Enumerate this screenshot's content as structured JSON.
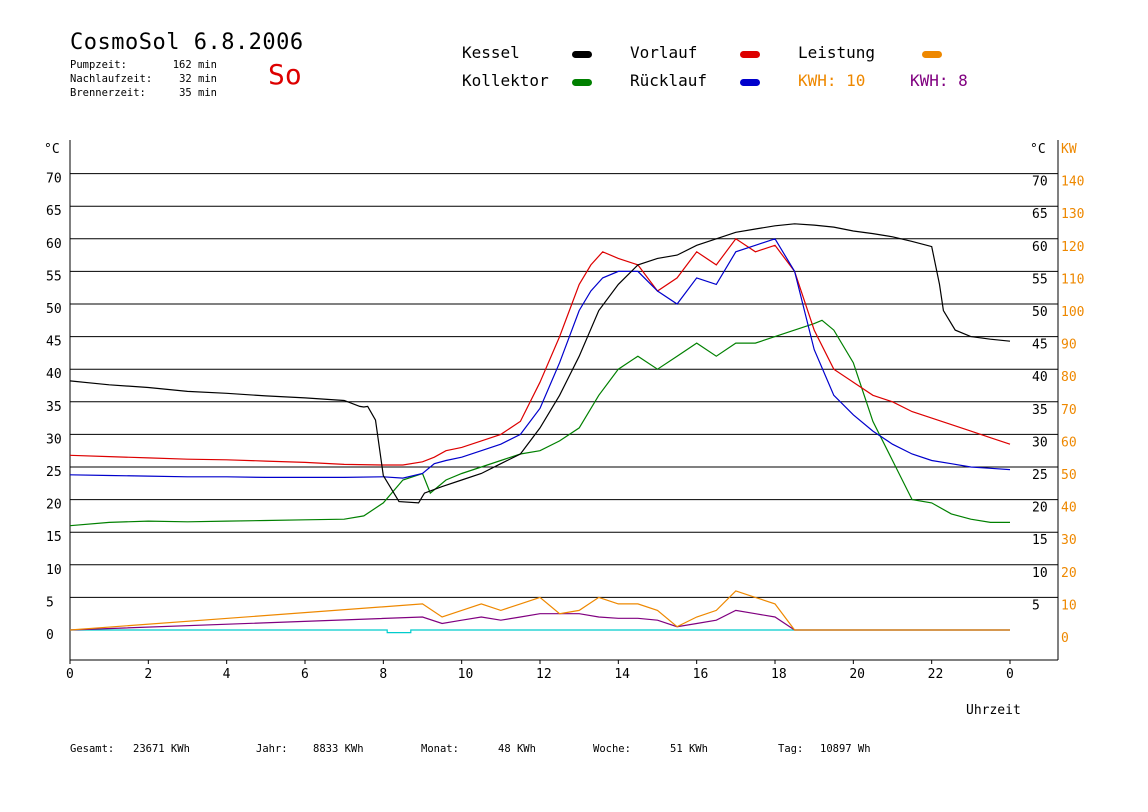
{
  "header": {
    "title": "CosmoSol 6.8.2006",
    "day": "So",
    "stats": [
      {
        "label": "Pumpzeit:",
        "value": "162 min"
      },
      {
        "label": "Nachlaufzeit:",
        "value": "32 min"
      },
      {
        "label": "Brennerzeit:",
        "value": "35 min"
      }
    ]
  },
  "legend": {
    "kessel": {
      "label": "Kessel",
      "color": "#000000"
    },
    "vorlauf": {
      "label": "Vorlauf",
      "color": "#dd0000"
    },
    "leistung": {
      "label": "Leistung",
      "color": "#ee8800"
    },
    "kollektor": {
      "label": "Kollektor",
      "color": "#008000"
    },
    "ruecklauf": {
      "label": "Rücklauf",
      "color": "#0000cc"
    },
    "kwh1": {
      "label": "KWH: 10",
      "color": "#ee8800"
    },
    "kwh2": {
      "label": "KWH: 8",
      "color": "#800080"
    }
  },
  "footer": {
    "gesamt": {
      "label": "Gesamt:",
      "value": "23671 KWh"
    },
    "jahr": {
      "label": "Jahr:",
      "value": "8833 KWh"
    },
    "monat": {
      "label": "Monat:",
      "value": "48 KWh"
    },
    "woche": {
      "label": "Woche:",
      "value": "51 KWh"
    },
    "tag": {
      "label": "Tag:",
      "value": "10897 Wh"
    }
  },
  "chart_data": {
    "type": "line",
    "xlabel": "Uhrzeit",
    "ylabel_left": "°C",
    "ylabel_right_primary": "°C",
    "ylabel_right_secondary": "KW",
    "xlim": [
      0,
      24
    ],
    "ylim": [
      0,
      75
    ],
    "x_ticks": [
      "0",
      "2",
      "4",
      "6",
      "8",
      "10",
      "12",
      "14",
      "16",
      "18",
      "20",
      "22",
      "0"
    ],
    "y_left_ticks": [
      "0",
      "5",
      "10",
      "15",
      "20",
      "25",
      "30",
      "35",
      "40",
      "45",
      "50",
      "55",
      "60",
      "65",
      "70"
    ],
    "y_right_ticks": [
      "5",
      "10",
      "15",
      "20",
      "25",
      "30",
      "35",
      "40",
      "45",
      "50",
      "55",
      "60",
      "65",
      "70"
    ],
    "kw_ticks": [
      "0",
      "10",
      "20",
      "30",
      "40",
      "50",
      "60",
      "70",
      "80",
      "90",
      "100",
      "110",
      "120",
      "130",
      "140"
    ],
    "grid": true,
    "series": [
      {
        "name": "Kessel",
        "color": "#000000",
        "x": [
          0,
          1,
          2,
          3,
          4,
          5,
          6,
          7,
          7.4,
          7.5,
          7.6,
          7.8,
          8.0,
          8.4,
          8.9,
          9.0,
          9.05,
          9.5,
          10,
          10.5,
          11,
          11.5,
          12,
          12.5,
          13,
          13.5,
          14,
          14.5,
          15,
          15.5,
          16,
          16.5,
          17,
          17.5,
          18,
          18.5,
          19,
          19.5,
          20,
          20.5,
          21,
          21.5,
          22,
          22.2,
          22.3,
          22.6,
          23,
          23.5,
          24
        ],
        "y": [
          38.2,
          37.6,
          37.2,
          36.6,
          36.3,
          35.9,
          35.6,
          35.2,
          34.3,
          34.2,
          34.3,
          32.2,
          23.7,
          19.7,
          19.5,
          20.5,
          21,
          22,
          23,
          24,
          25.5,
          27,
          31,
          36,
          42,
          49,
          53,
          56,
          57,
          57.5,
          59,
          60,
          61,
          61.5,
          62,
          62.3,
          62.1,
          61.8,
          61.2,
          60.8,
          60.3,
          59.6,
          58.8,
          53,
          49,
          46,
          45,
          44.6,
          44.3
        ]
      },
      {
        "name": "Vorlauf",
        "color": "#dd0000",
        "x": [
          0,
          1,
          2,
          3,
          4,
          5,
          6,
          7,
          8,
          8.5,
          9,
          9.3,
          9.6,
          10,
          10.5,
          11,
          11.5,
          12,
          12.5,
          13,
          13.3,
          13.6,
          14,
          14.5,
          15,
          15.5,
          16,
          16.5,
          17,
          17.5,
          18,
          18.5,
          19,
          19.5,
          20,
          20.5,
          21,
          21.5,
          22,
          22.5,
          23,
          23.5,
          24
        ],
        "y": [
          26.8,
          26.6,
          26.4,
          26.2,
          26.1,
          25.9,
          25.7,
          25.4,
          25.3,
          25.3,
          25.8,
          26.5,
          27.5,
          28,
          29,
          30,
          32,
          38,
          45,
          53,
          56,
          58,
          57,
          56,
          52,
          54,
          58,
          56,
          60,
          58,
          59,
          55,
          46,
          40,
          38,
          36,
          35,
          33.5,
          32.5,
          31.5,
          30.5,
          29.5,
          28.5
        ]
      },
      {
        "name": "Rücklauf",
        "color": "#0000cc",
        "x": [
          0,
          1,
          2,
          3,
          4,
          5,
          6,
          7,
          8,
          8.5,
          9,
          9.3,
          9.6,
          10,
          10.5,
          11,
          11.5,
          12,
          12.5,
          13,
          13.3,
          13.6,
          14,
          14.5,
          15,
          15.5,
          16,
          16.5,
          17,
          17.5,
          18,
          18.5,
          19,
          19.5,
          20,
          20.5,
          21,
          21.5,
          22,
          22.5,
          23,
          23.5,
          24
        ],
        "y": [
          23.8,
          23.7,
          23.6,
          23.5,
          23.5,
          23.4,
          23.4,
          23.4,
          23.5,
          23.3,
          24,
          25.5,
          26,
          26.5,
          27.5,
          28.5,
          30,
          34,
          41,
          49,
          52,
          54,
          55,
          55,
          52,
          50,
          54,
          53,
          58,
          59,
          60,
          55,
          43,
          36,
          33,
          30.5,
          28.5,
          27,
          26,
          25.5,
          25,
          24.8,
          24.6
        ]
      },
      {
        "name": "Kollektor",
        "color": "#008000",
        "x": [
          0,
          1,
          2,
          3,
          4,
          5,
          6,
          7,
          7.5,
          8,
          8.5,
          9,
          9.2,
          9.6,
          10,
          10.5,
          11,
          11.5,
          12,
          12.5,
          13,
          13.5,
          14,
          14.5,
          15,
          15.5,
          16,
          16.5,
          17,
          17.5,
          18,
          18.5,
          19,
          19.2,
          19.5,
          20,
          20.5,
          21,
          21.5,
          22,
          22.5,
          23,
          23.5,
          24
        ],
        "y": [
          16,
          16.5,
          16.7,
          16.6,
          16.7,
          16.8,
          16.9,
          17,
          17.5,
          19.5,
          23,
          24,
          21,
          23,
          24,
          25,
          26,
          27,
          27.5,
          29,
          31,
          36,
          40,
          42,
          40,
          42,
          44,
          42,
          44,
          44,
          45,
          46,
          47,
          47.5,
          46,
          41,
          32,
          26,
          20,
          19.5,
          17.8,
          17,
          16.5,
          16.5
        ]
      },
      {
        "name": "Leistung",
        "color": "#ee8800",
        "x": [
          0,
          9,
          9.5,
          10,
          10.5,
          11,
          11.5,
          12,
          12.5,
          13,
          13.5,
          14,
          14.5,
          15,
          15.5,
          16,
          16.5,
          17,
          17.5,
          18,
          18.5,
          24
        ],
        "y": [
          0,
          4,
          2,
          3,
          4,
          3,
          4,
          5,
          2.5,
          3,
          5,
          4,
          4,
          3,
          0.5,
          2,
          3,
          6,
          5,
          4,
          0,
          0
        ]
      },
      {
        "name": "Pumpe",
        "color": "#800080",
        "x": [
          0,
          9,
          9.5,
          10,
          10.5,
          11,
          11.5,
          12,
          12.5,
          13,
          13.5,
          14,
          14.5,
          15,
          15.5,
          16,
          16.5,
          17,
          17.5,
          18,
          18.5,
          24
        ],
        "y": [
          0,
          2,
          1,
          1.5,
          2,
          1.5,
          2,
          2.5,
          2.5,
          2.5,
          2,
          1.8,
          1.8,
          1.5,
          0.5,
          1,
          1.5,
          3,
          2.5,
          2,
          0,
          0
        ]
      },
      {
        "name": "Status",
        "color": "#00cccc",
        "x": [
          0,
          8.1,
          8.1,
          8.7,
          8.7,
          24
        ],
        "y": [
          0,
          0,
          -0.4,
          -0.4,
          0,
          0
        ]
      }
    ]
  }
}
